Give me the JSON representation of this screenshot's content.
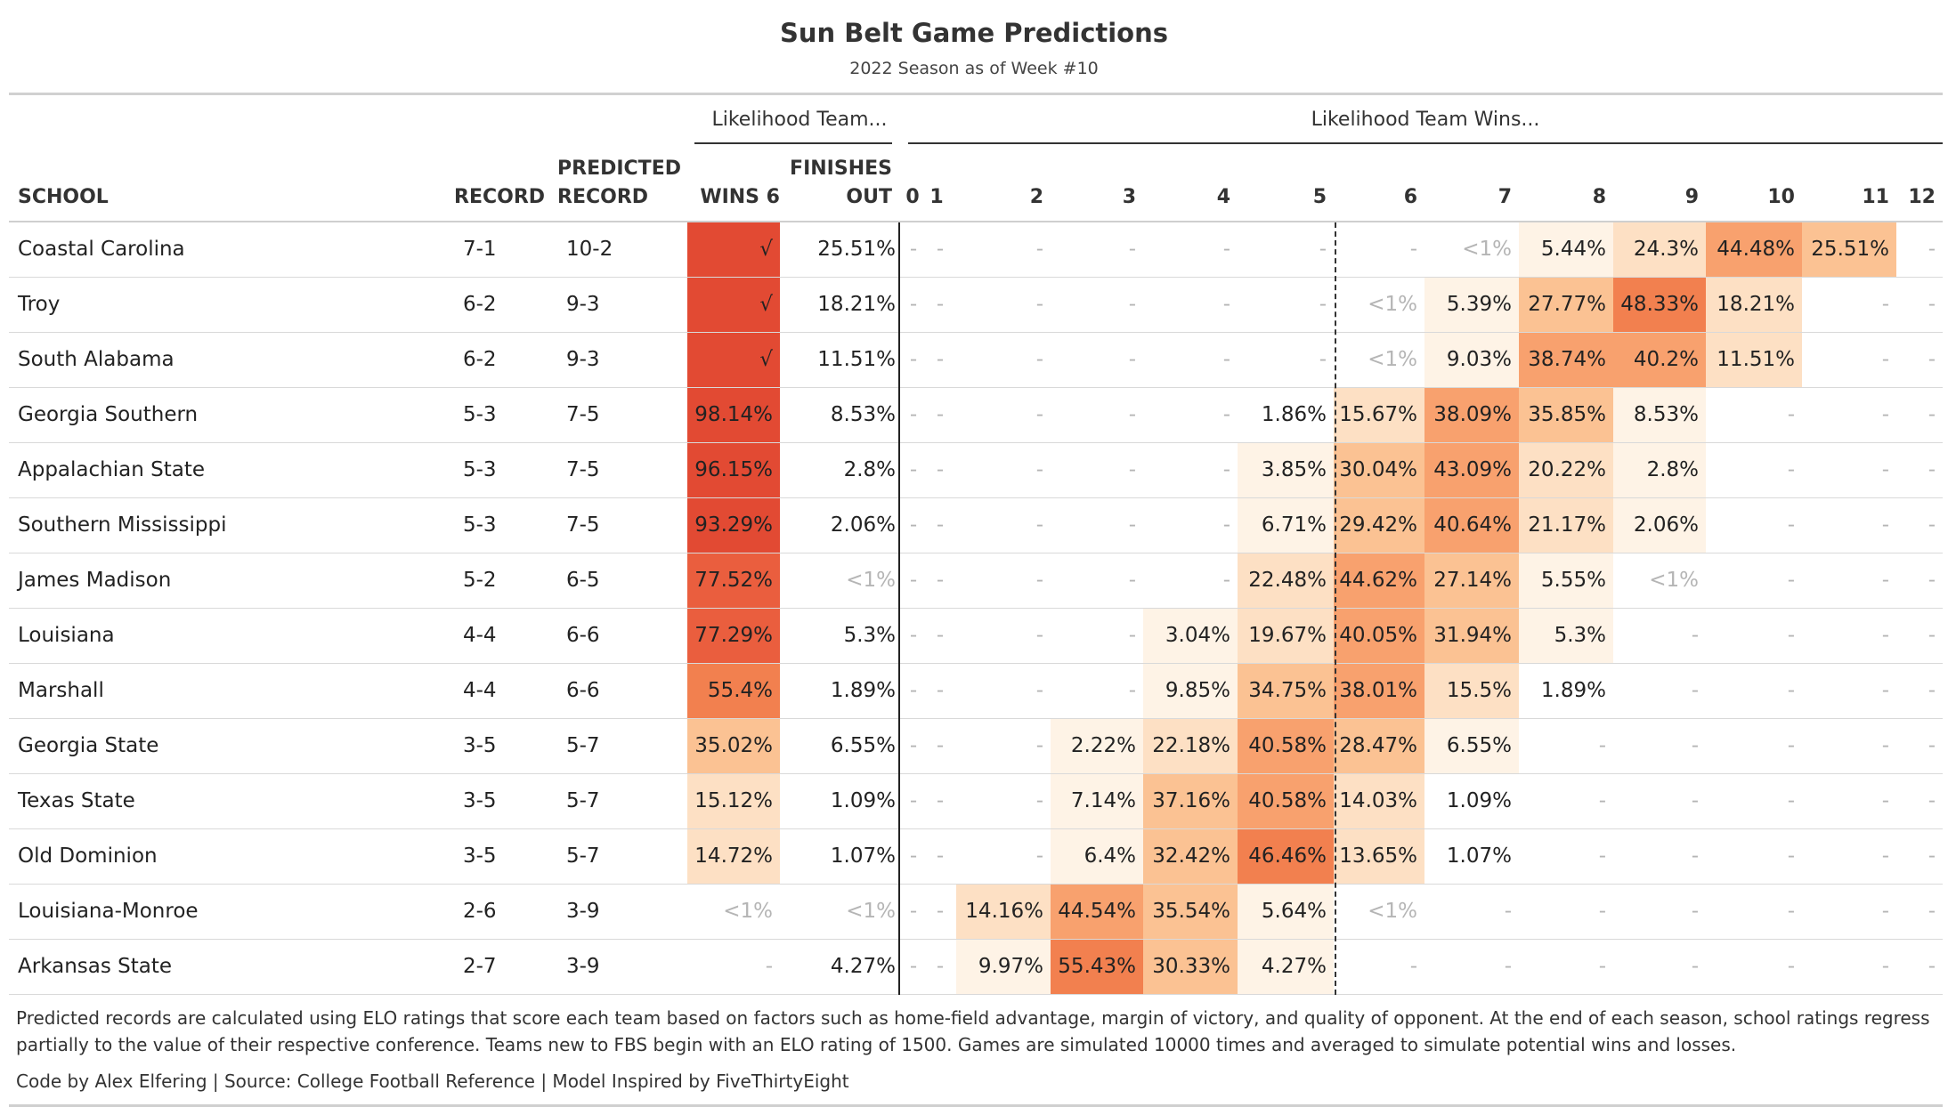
{
  "title": "Sun Belt Game Predictions",
  "subtitle": "2022 Season as of Week #10",
  "group_headers": {
    "likelihood_team": "Likelihood Team...",
    "likelihood_wins": "Likelihood Team Wins..."
  },
  "columns": {
    "school": "SCHOOL",
    "record": "RECORD",
    "predicted_record": "PREDICTED\nRECORD",
    "wins6": "WINS 6",
    "finishes_out": "FINISHES\nOUT",
    "wins": [
      "0",
      "1",
      "2",
      "3",
      "4",
      "5",
      "6",
      "7",
      "8",
      "9",
      "10",
      "11",
      "12"
    ]
  },
  "colors": {
    "scale": [
      "#fef3e6",
      "#fde0c4",
      "#fbc293",
      "#f8a16e",
      "#f2804f",
      "#ea5e3e",
      "#e24a33"
    ],
    "text": "#222222",
    "muted": "#b5b5b5"
  },
  "footnote": "Predicted records are calculated using ELO ratings that score each team based on factors such as home-field advantage, margin of victory, and quality of opponent. At the end of each season, school ratings regress partially to the value of their respective conference. Teams new to FBS begin with an ELO rating of 1500. Games are simulated 10000 times and averaged to simulate potential wins and losses.",
  "credits": "Code by Alex Elfering | Source: College Football Reference | Model Inspired by FiveThirtyEight",
  "chart_data": {
    "type": "table",
    "rows": [
      {
        "school": "Coastal Carolina",
        "record": "7-1",
        "predicted": "10-2",
        "wins6": "√",
        "finishes_out": "25.51%",
        "wins": [
          "-",
          "-",
          "-",
          "-",
          "-",
          "-",
          "-",
          "<1%",
          "5.44%",
          "24.3%",
          "44.48%",
          "25.51%",
          "-"
        ]
      },
      {
        "school": "Troy",
        "record": "6-2",
        "predicted": "9-3",
        "wins6": "√",
        "finishes_out": "18.21%",
        "wins": [
          "-",
          "-",
          "-",
          "-",
          "-",
          "-",
          "<1%",
          "5.39%",
          "27.77%",
          "48.33%",
          "18.21%",
          "-",
          "-"
        ]
      },
      {
        "school": "South Alabama",
        "record": "6-2",
        "predicted": "9-3",
        "wins6": "√",
        "finishes_out": "11.51%",
        "wins": [
          "-",
          "-",
          "-",
          "-",
          "-",
          "-",
          "<1%",
          "9.03%",
          "38.74%",
          "40.2%",
          "11.51%",
          "-",
          "-"
        ]
      },
      {
        "school": "Georgia Southern",
        "record": "5-3",
        "predicted": "7-5",
        "wins6": "98.14%",
        "finishes_out": "8.53%",
        "wins": [
          "-",
          "-",
          "-",
          "-",
          "-",
          "1.86%",
          "15.67%",
          "38.09%",
          "35.85%",
          "8.53%",
          "-",
          "-",
          "-"
        ]
      },
      {
        "school": "Appalachian State",
        "record": "5-3",
        "predicted": "7-5",
        "wins6": "96.15%",
        "finishes_out": "2.8%",
        "wins": [
          "-",
          "-",
          "-",
          "-",
          "-",
          "3.85%",
          "30.04%",
          "43.09%",
          "20.22%",
          "2.8%",
          "-",
          "-",
          "-"
        ]
      },
      {
        "school": "Southern Mississippi",
        "record": "5-3",
        "predicted": "7-5",
        "wins6": "93.29%",
        "finishes_out": "2.06%",
        "wins": [
          "-",
          "-",
          "-",
          "-",
          "-",
          "6.71%",
          "29.42%",
          "40.64%",
          "21.17%",
          "2.06%",
          "-",
          "-",
          "-"
        ]
      },
      {
        "school": "James Madison",
        "record": "5-2",
        "predicted": "6-5",
        "wins6": "77.52%",
        "finishes_out": "<1%",
        "wins": [
          "-",
          "-",
          "-",
          "-",
          "-",
          "22.48%",
          "44.62%",
          "27.14%",
          "5.55%",
          "<1%",
          "-",
          "-",
          "-"
        ]
      },
      {
        "school": "Louisiana",
        "record": "4-4",
        "predicted": "6-6",
        "wins6": "77.29%",
        "finishes_out": "5.3%",
        "wins": [
          "-",
          "-",
          "-",
          "-",
          "3.04%",
          "19.67%",
          "40.05%",
          "31.94%",
          "5.3%",
          "-",
          "-",
          "-",
          "-"
        ]
      },
      {
        "school": "Marshall",
        "record": "4-4",
        "predicted": "6-6",
        "wins6": "55.4%",
        "finishes_out": "1.89%",
        "wins": [
          "-",
          "-",
          "-",
          "-",
          "9.85%",
          "34.75%",
          "38.01%",
          "15.5%",
          "1.89%",
          "-",
          "-",
          "-",
          "-"
        ]
      },
      {
        "school": "Georgia State",
        "record": "3-5",
        "predicted": "5-7",
        "wins6": "35.02%",
        "finishes_out": "6.55%",
        "wins": [
          "-",
          "-",
          "-",
          "2.22%",
          "22.18%",
          "40.58%",
          "28.47%",
          "6.55%",
          "-",
          "-",
          "-",
          "-",
          "-"
        ]
      },
      {
        "school": "Texas State",
        "record": "3-5",
        "predicted": "5-7",
        "wins6": "15.12%",
        "finishes_out": "1.09%",
        "wins": [
          "-",
          "-",
          "-",
          "7.14%",
          "37.16%",
          "40.58%",
          "14.03%",
          "1.09%",
          "-",
          "-",
          "-",
          "-",
          "-"
        ]
      },
      {
        "school": "Old Dominion",
        "record": "3-5",
        "predicted": "5-7",
        "wins6": "14.72%",
        "finishes_out": "1.07%",
        "wins": [
          "-",
          "-",
          "-",
          "6.4%",
          "32.42%",
          "46.46%",
          "13.65%",
          "1.07%",
          "-",
          "-",
          "-",
          "-",
          "-"
        ]
      },
      {
        "school": "Louisiana-Monroe",
        "record": "2-6",
        "predicted": "3-9",
        "wins6": "<1%",
        "finishes_out": "<1%",
        "wins": [
          "-",
          "-",
          "14.16%",
          "44.54%",
          "35.54%",
          "5.64%",
          "<1%",
          "-",
          "-",
          "-",
          "-",
          "-",
          "-"
        ]
      },
      {
        "school": "Arkansas State",
        "record": "2-7",
        "predicted": "3-9",
        "wins6": "-",
        "finishes_out": "4.27%",
        "wins": [
          "-",
          "-",
          "9.97%",
          "55.43%",
          "30.33%",
          "4.27%",
          "-",
          "-",
          "-",
          "-",
          "-",
          "-",
          "-"
        ]
      }
    ]
  }
}
